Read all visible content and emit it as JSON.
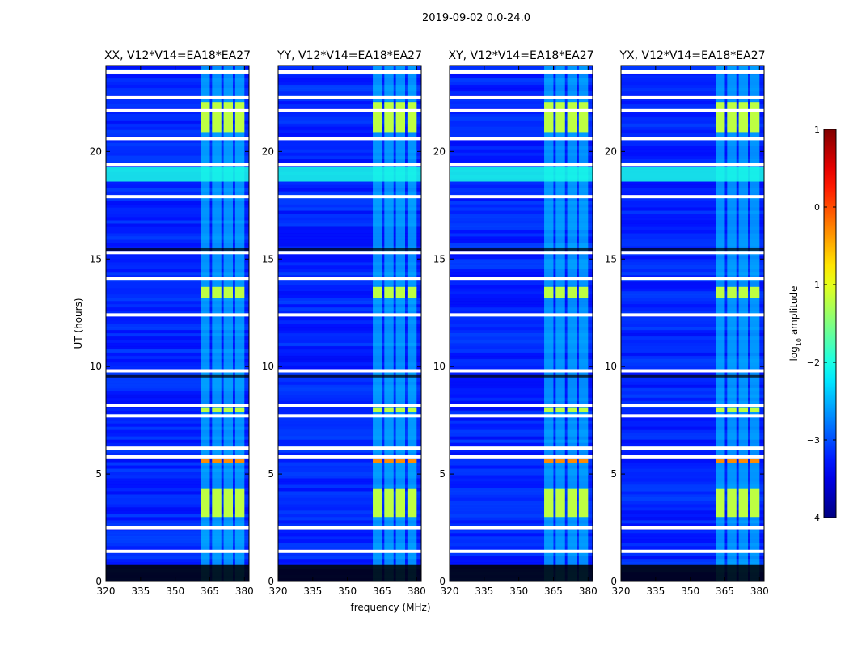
{
  "figure": {
    "suptitle": "2019-09-02 0.0-24.0"
  },
  "chart_data": {
    "type": "heatmap",
    "suptitle": "2019-09-02 0.0-24.0",
    "xlabel": "frequency (MHz)",
    "ylabel": "UT (hours)",
    "x_range": [
      320,
      382
    ],
    "y_range": [
      0,
      24
    ],
    "x_ticks": [
      "320",
      "335",
      "350",
      "365",
      "380"
    ],
    "x_tick_values": [
      320,
      335,
      350,
      365,
      380
    ],
    "y_ticks": [
      "0",
      "5",
      "10",
      "15",
      "20"
    ],
    "y_tick_values": [
      0,
      5,
      10,
      15,
      20
    ],
    "panels": [
      {
        "title": "XX, V12*V14=EA18*EA27",
        "pol": "XX"
      },
      {
        "title": "YY, V12*V14=EA18*EA27",
        "pol": "YY"
      },
      {
        "title": "XY, V12*V14=EA18*EA27",
        "pol": "XY"
      },
      {
        "title": "YX, V12*V14=EA18*EA27",
        "pol": "YX"
      }
    ],
    "colorbar": {
      "label": "log10 amplitude",
      "label_base": "log",
      "label_sub": "10",
      "label_rest": " amplitude",
      "range": [
        -4,
        1
      ],
      "ticks": [
        "−4",
        "−3",
        "−2",
        "−1",
        "0",
        "1"
      ],
      "tick_values": [
        -4,
        -3,
        -2,
        -1,
        0,
        1
      ],
      "colormap": "jet"
    },
    "background_level": -3.2,
    "rfi_bands_mhz": [
      [
        361,
        365
      ],
      [
        366,
        370
      ],
      [
        371,
        375
      ],
      [
        376,
        380
      ]
    ],
    "bright_time_blocks_ut": [
      [
        20.9,
        22.3
      ],
      [
        13.2,
        13.7
      ],
      [
        7.9,
        8.1
      ],
      [
        5.5,
        5.7
      ],
      [
        3.0,
        4.3
      ]
    ],
    "flagged_white_rows_ut": [
      23.7,
      22.5,
      21.9,
      20.6,
      19.4,
      17.9,
      15.3,
      14.1,
      12.4,
      9.8,
      8.2,
      7.7,
      6.2,
      5.8,
      2.5,
      1.4
    ]
  }
}
